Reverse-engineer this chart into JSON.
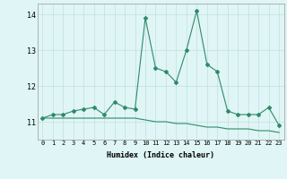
{
  "xlabel": "Humidex (Indice chaleur)",
  "x": [
    0,
    1,
    2,
    3,
    4,
    5,
    6,
    7,
    8,
    9,
    10,
    11,
    12,
    13,
    14,
    15,
    16,
    17,
    18,
    19,
    20,
    21,
    22,
    23
  ],
  "y_main": [
    11.1,
    11.2,
    11.2,
    11.3,
    11.35,
    11.4,
    11.2,
    11.55,
    11.4,
    11.35,
    13.9,
    12.5,
    12.4,
    12.1,
    13.0,
    14.1,
    12.6,
    12.4,
    11.3,
    11.2,
    11.2,
    11.2,
    11.4,
    10.9
  ],
  "y_ref": [
    11.1,
    11.1,
    11.1,
    11.1,
    11.1,
    11.1,
    11.1,
    11.1,
    11.1,
    11.1,
    11.05,
    11.0,
    11.0,
    10.95,
    10.95,
    10.9,
    10.85,
    10.85,
    10.8,
    10.8,
    10.8,
    10.75,
    10.75,
    10.7
  ],
  "line_color": "#2E8B6A",
  "bg_color": "#E0F5F5",
  "grid_color": "#C0E0E0",
  "ylim": [
    10.5,
    14.3
  ],
  "yticks": [
    11,
    12,
    13,
    14
  ],
  "xticks": [
    0,
    1,
    2,
    3,
    4,
    5,
    6,
    7,
    8,
    9,
    10,
    11,
    12,
    13,
    14,
    15,
    16,
    17,
    18,
    19,
    20,
    21,
    22,
    23
  ],
  "marker": "D",
  "markersize": 2.0,
  "linewidth_main": 0.8,
  "linewidth_ref": 0.8,
  "xlabel_fontsize": 6.0,
  "xtick_fontsize": 5.0,
  "ytick_fontsize": 6.0
}
